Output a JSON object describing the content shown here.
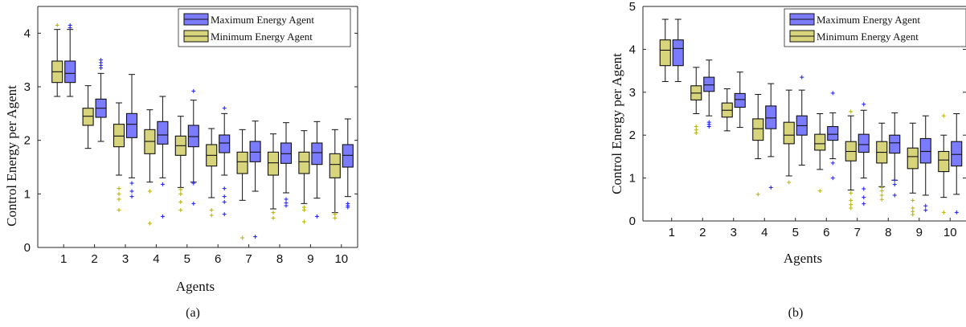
{
  "colors": {
    "max": "#7b7bff",
    "min": "#d8d47c",
    "max_outlier": "#1a1aff",
    "min_outlier": "#b8b000",
    "axis": "#262626"
  },
  "chart_data": [
    {
      "type": "box",
      "caption": "(a)",
      "xlabel": "Agents",
      "ylabel": "Control Energy per Agent",
      "ylim": [
        0,
        4.5
      ],
      "yticks": [
        0,
        1,
        2,
        3,
        4
      ],
      "categories": [
        "1",
        "2",
        "3",
        "4",
        "5",
        "6",
        "7",
        "8",
        "9",
        "10"
      ],
      "legend": [
        "Maximum Energy Agent",
        "Minimum Energy Agent"
      ],
      "legend_position": "top-right",
      "series": [
        {
          "name": "Maximum Energy Agent",
          "boxes": [
            {
              "min": 2.82,
              "q1": 3.08,
              "median": 3.25,
              "q3": 3.48,
              "max": 4.07,
              "outliers": [
                4.1,
                4.15
              ]
            },
            {
              "min": 1.98,
              "q1": 2.43,
              "median": 2.6,
              "q3": 2.77,
              "max": 3.25,
              "outliers": [
                3.35,
                3.4,
                3.45,
                3.5
              ]
            },
            {
              "min": 1.3,
              "q1": 2.05,
              "median": 2.3,
              "q3": 2.5,
              "max": 3.23,
              "outliers": [
                1.2,
                1.05,
                0.95
              ]
            },
            {
              "min": 1.3,
              "q1": 1.93,
              "median": 2.1,
              "q3": 2.35,
              "max": 2.82,
              "outliers": [
                1.18,
                0.58
              ]
            },
            {
              "min": 1.22,
              "q1": 1.88,
              "median": 2.07,
              "q3": 2.28,
              "max": 2.75,
              "outliers": [
                2.92,
                1.2,
                0.82
              ]
            },
            {
              "min": 1.35,
              "q1": 1.77,
              "median": 1.95,
              "q3": 2.1,
              "max": 2.5,
              "outliers": [
                2.6,
                1.1,
                0.95,
                0.85,
                0.62
              ]
            },
            {
              "min": 1.05,
              "q1": 1.6,
              "median": 1.78,
              "q3": 1.98,
              "max": 2.36,
              "outliers": [
                0.2
              ]
            },
            {
              "min": 1.02,
              "q1": 1.57,
              "median": 1.75,
              "q3": 1.95,
              "max": 2.33,
              "outliers": [
                0.9,
                0.83,
                0.78
              ]
            },
            {
              "min": 0.92,
              "q1": 1.55,
              "median": 1.77,
              "q3": 1.95,
              "max": 2.35,
              "outliers": [
                0.58
              ]
            },
            {
              "min": 0.95,
              "q1": 1.5,
              "median": 1.72,
              "q3": 1.92,
              "max": 2.4,
              "outliers": [
                0.82,
                0.78,
                0.75
              ]
            }
          ]
        },
        {
          "name": "Minimum Energy Agent",
          "boxes": [
            {
              "min": 2.82,
              "q1": 3.08,
              "median": 3.28,
              "q3": 3.48,
              "max": 4.07,
              "outliers": [
                4.15
              ]
            },
            {
              "min": 1.85,
              "q1": 2.28,
              "median": 2.45,
              "q3": 2.6,
              "max": 3.02,
              "outliers": []
            },
            {
              "min": 1.35,
              "q1": 1.88,
              "median": 2.08,
              "q3": 2.3,
              "max": 2.7,
              "outliers": [
                1.1,
                1.0,
                0.9,
                0.7
              ]
            },
            {
              "min": 1.22,
              "q1": 1.75,
              "median": 1.98,
              "q3": 2.2,
              "max": 2.57,
              "outliers": [
                1.05,
                0.45
              ]
            },
            {
              "min": 1.12,
              "q1": 1.72,
              "median": 1.9,
              "q3": 2.08,
              "max": 2.45,
              "outliers": [
                1.08,
                1.0,
                0.85,
                0.7
              ]
            },
            {
              "min": 0.93,
              "q1": 1.52,
              "median": 1.72,
              "q3": 1.92,
              "max": 2.22,
              "outliers": [
                0.7,
                0.6
              ]
            },
            {
              "min": 0.88,
              "q1": 1.38,
              "median": 1.6,
              "q3": 1.78,
              "max": 2.2,
              "outliers": [
                0.18
              ]
            },
            {
              "min": 0.72,
              "q1": 1.35,
              "median": 1.58,
              "q3": 1.78,
              "max": 2.12,
              "outliers": [
                0.65,
                0.55
              ]
            },
            {
              "min": 0.82,
              "q1": 1.38,
              "median": 1.6,
              "q3": 1.78,
              "max": 2.18,
              "outliers": [
                0.75,
                0.7,
                0.48
              ]
            },
            {
              "min": 0.65,
              "q1": 1.3,
              "median": 1.55,
              "q3": 1.75,
              "max": 2.2,
              "outliers": [
                0.62,
                0.55
              ]
            }
          ]
        }
      ]
    },
    {
      "type": "box",
      "caption": "(b)",
      "xlabel": "Agents",
      "ylabel": "Control Energy per Agent",
      "ylim": [
        0,
        5
      ],
      "yticks": [
        0,
        1,
        2,
        3,
        4,
        5
      ],
      "categories": [
        "1",
        "2",
        "3",
        "4",
        "5",
        "6",
        "7",
        "8",
        "9",
        "10"
      ],
      "legend": [
        "Maximum Energy Agent",
        "Minimum Energy Agent"
      ],
      "legend_position": "top-right",
      "series": [
        {
          "name": "Maximum Energy Agent",
          "boxes": [
            {
              "min": 3.25,
              "q1": 3.62,
              "median": 4.02,
              "q3": 4.22,
              "max": 4.7,
              "outliers": []
            },
            {
              "min": 2.45,
              "q1": 3.02,
              "median": 3.17,
              "q3": 3.35,
              "max": 3.75,
              "outliers": [
                2.3,
                2.25,
                2.2
              ]
            },
            {
              "min": 2.18,
              "q1": 2.65,
              "median": 2.83,
              "q3": 2.97,
              "max": 3.47,
              "outliers": []
            },
            {
              "min": 1.5,
              "q1": 2.15,
              "median": 2.4,
              "q3": 2.68,
              "max": 3.2,
              "outliers": [
                0.78
              ]
            },
            {
              "min": 1.3,
              "q1": 2.0,
              "median": 2.22,
              "q3": 2.45,
              "max": 3.05,
              "outliers": [
                3.35
              ]
            },
            {
              "min": 1.45,
              "q1": 1.88,
              "median": 2.02,
              "q3": 2.2,
              "max": 2.52,
              "outliers": [
                2.98,
                1.35,
                1.0
              ]
            },
            {
              "min": 1.0,
              "q1": 1.6,
              "median": 1.78,
              "q3": 2.02,
              "max": 2.58,
              "outliers": [
                2.72,
                0.75,
                0.55,
                0.4
              ]
            },
            {
              "min": 0.95,
              "q1": 1.58,
              "median": 1.82,
              "q3": 2.0,
              "max": 2.52,
              "outliers": [
                0.95,
                0.85,
                0.6
              ]
            },
            {
              "min": 0.6,
              "q1": 1.35,
              "median": 1.62,
              "q3": 1.92,
              "max": 2.45,
              "outliers": [
                0.35,
                0.25
              ]
            },
            {
              "min": 0.62,
              "q1": 1.28,
              "median": 1.55,
              "q3": 1.85,
              "max": 2.5,
              "outliers": [
                0.2
              ]
            }
          ]
        },
        {
          "name": "Minimum Energy Agent",
          "boxes": [
            {
              "min": 3.25,
              "q1": 3.62,
              "median": 3.98,
              "q3": 4.22,
              "max": 4.7,
              "outliers": []
            },
            {
              "min": 2.5,
              "q1": 2.82,
              "median": 2.98,
              "q3": 3.15,
              "max": 3.58,
              "outliers": [
                2.2,
                2.12,
                2.05
              ]
            },
            {
              "min": 2.1,
              "q1": 2.42,
              "median": 2.58,
              "q3": 2.75,
              "max": 3.08,
              "outliers": []
            },
            {
              "min": 1.45,
              "q1": 1.88,
              "median": 2.15,
              "q3": 2.38,
              "max": 2.95,
              "outliers": [
                0.62
              ]
            },
            {
              "min": 1.05,
              "q1": 1.8,
              "median": 2.0,
              "q3": 2.3,
              "max": 3.05,
              "outliers": [
                0.9
              ]
            },
            {
              "min": 1.2,
              "q1": 1.65,
              "median": 1.8,
              "q3": 2.02,
              "max": 2.5,
              "outliers": [
                0.7
              ]
            },
            {
              "min": 0.72,
              "q1": 1.4,
              "median": 1.62,
              "q3": 1.85,
              "max": 2.45,
              "outliers": [
                2.55,
                0.65,
                0.48,
                0.38,
                0.3
              ]
            },
            {
              "min": 0.8,
              "q1": 1.35,
              "median": 1.6,
              "q3": 1.85,
              "max": 2.28,
              "outliers": [
                0.78,
                0.7,
                0.6,
                0.5
              ]
            },
            {
              "min": 0.65,
              "q1": 1.22,
              "median": 1.5,
              "q3": 1.7,
              "max": 2.28,
              "outliers": [
                0.48,
                0.3,
                0.22,
                0.15
              ]
            },
            {
              "min": 0.55,
              "q1": 1.15,
              "median": 1.42,
              "q3": 1.62,
              "max": 2.0,
              "outliers": [
                2.45,
                0.2
              ]
            }
          ]
        }
      ]
    }
  ]
}
